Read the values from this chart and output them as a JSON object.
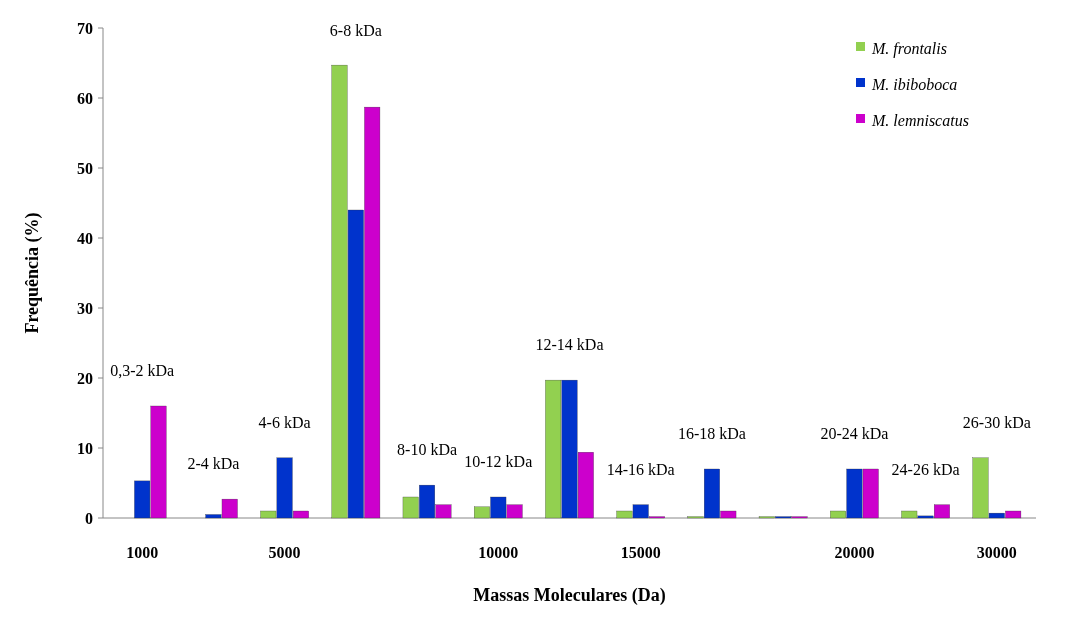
{
  "chart_data": {
    "type": "bar",
    "xlabel": "Massas Moleculares (Da)",
    "ylabel": "Frequência (%)",
    "categories": [
      "1000",
      null,
      "5000",
      null,
      null,
      "10000",
      null,
      "15000",
      null,
      null,
      "20000",
      null,
      "30000"
    ],
    "series": [
      {
        "name": "M. frontalis",
        "color": "#92d050",
        "values": [
          0,
          0,
          1,
          64.7,
          3,
          1.6,
          19.7,
          1,
          0.2,
          0.2,
          1,
          1,
          8.6
        ]
      },
      {
        "name": "M. ibiboboca",
        "color": "#0033cc",
        "values": [
          5.3,
          0.5,
          8.6,
          44,
          4.7,
          3,
          19.7,
          1.9,
          7,
          0.2,
          7,
          0.3,
          0.7
        ]
      },
      {
        "name": "M. lemniscatus",
        "color": "#cc00cc",
        "values": [
          16,
          2.7,
          1,
          58.7,
          1.9,
          1.9,
          9.4,
          0.2,
          1,
          0.2,
          7,
          1.9,
          1
        ]
      }
    ],
    "annotations": [
      "0,3-2 kDa",
      "2-4 kDa",
      "4-6 kDa",
      "6-8 kDa",
      "8-10 kDa",
      "10-12 kDa",
      "12-14 kDa",
      "14-16 kDa",
      "16-18 kDa",
      null,
      "20-24 kDa",
      "24-26 kDa",
      "26-30 kDa"
    ],
    "ylim": [
      0,
      70
    ],
    "yticks": [
      0,
      10,
      20,
      30,
      40,
      50,
      60,
      70
    ],
    "legend": "top right",
    "grid": false
  }
}
